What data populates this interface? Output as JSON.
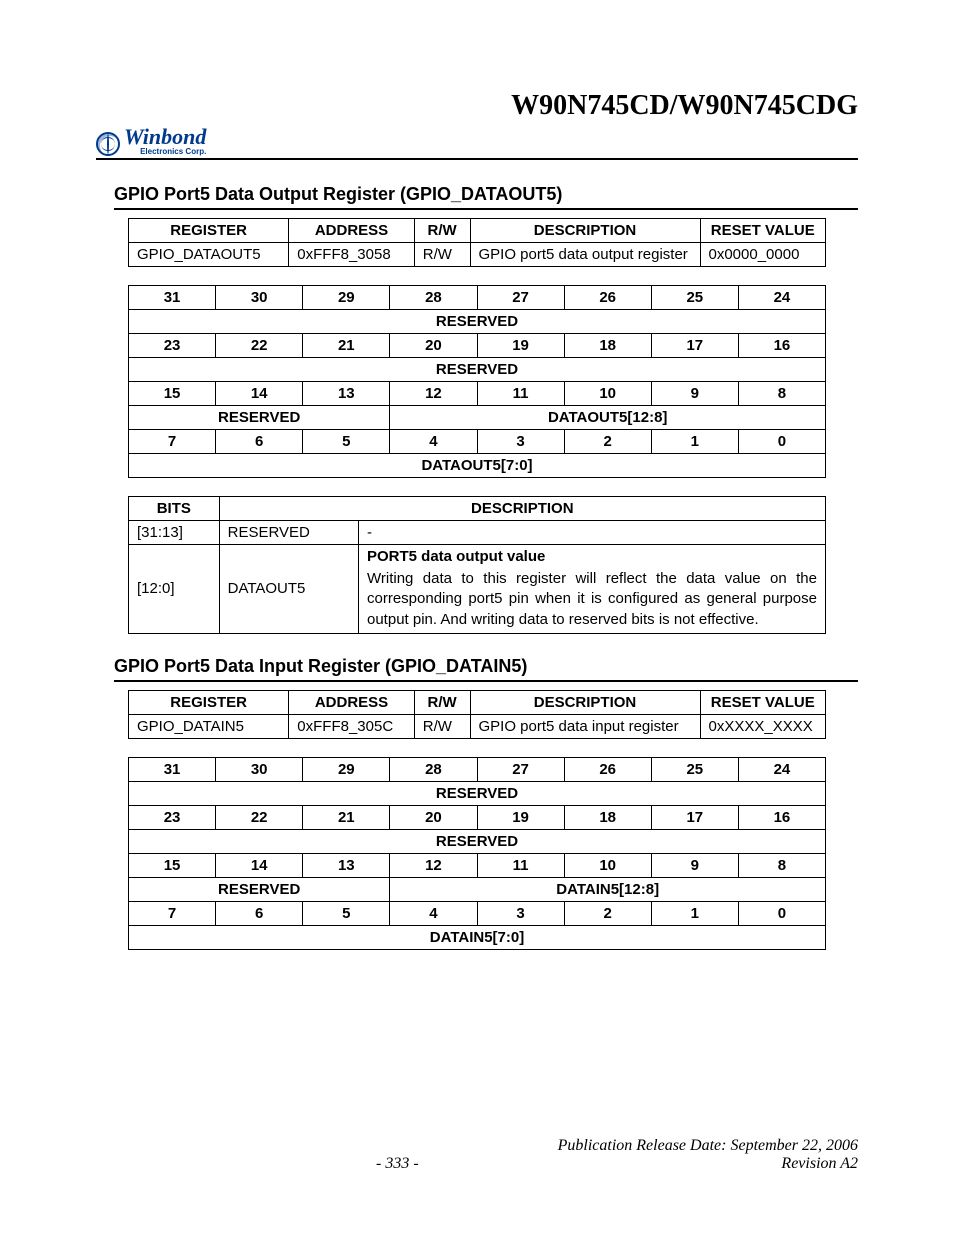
{
  "doc_title": "W90N745CD/W90N745CDG",
  "logo": {
    "brand": "Winbond",
    "sub": "Electronics Corp."
  },
  "section1": {
    "title": "GPIO Port5 Data Output Register (GPIO_DATAOUT5)",
    "header_cols": [
      "REGISTER",
      "ADDRESS",
      "R/W",
      "DESCRIPTION",
      "RESET VALUE"
    ],
    "row": [
      "GPIO_DATAOUT5",
      "0xFFF8_3058",
      "R/W",
      "GPIO port5 data output register",
      "0x0000_0000"
    ],
    "bits_rows": [
      [
        "31",
        "30",
        "29",
        "28",
        "27",
        "26",
        "25",
        "24"
      ],
      [
        {
          "span": 8,
          "text": "RESERVED"
        }
      ],
      [
        "23",
        "22",
        "21",
        "20",
        "19",
        "18",
        "17",
        "16"
      ],
      [
        {
          "span": 8,
          "text": "RESERVED"
        }
      ],
      [
        "15",
        "14",
        "13",
        "12",
        "11",
        "10",
        "9",
        "8"
      ],
      [
        {
          "span": 3,
          "text": "RESERVED"
        },
        {
          "span": 5,
          "text": "DATAOUT5[12:8]"
        }
      ],
      [
        "7",
        "6",
        "5",
        "4",
        "3",
        "2",
        "1",
        "0"
      ],
      [
        {
          "span": 8,
          "text": "DATAOUT5[7:0]"
        }
      ]
    ],
    "desc_cols": [
      "BITS",
      "DESCRIPTION"
    ],
    "desc_rows": [
      {
        "bits": "[31:13]",
        "name": "RESERVED",
        "title": "",
        "body": "-"
      },
      {
        "bits": "[12:0]",
        "name": "DATAOUT5",
        "title": "PORT5 data output value",
        "body": "Writing data to this register will reflect the data value on the corresponding port5 pin when it is configured as general purpose output pin. And writing data to reserved bits is not effective."
      }
    ]
  },
  "section2": {
    "title": "GPIO Port5 Data Input Register (GPIO_DATAIN5)",
    "header_cols": [
      "REGISTER",
      "ADDRESS",
      "R/W",
      "DESCRIPTION",
      "RESET VALUE"
    ],
    "row": [
      "GPIO_DATAIN5",
      "0xFFF8_305C",
      "R/W",
      "GPIO port5 data input register",
      "0xXXXX_XXXX"
    ],
    "bits_rows": [
      [
        "31",
        "30",
        "29",
        "28",
        "27",
        "26",
        "25",
        "24"
      ],
      [
        {
          "span": 8,
          "text": "RESERVED"
        }
      ],
      [
        "23",
        "22",
        "21",
        "20",
        "19",
        "18",
        "17",
        "16"
      ],
      [
        {
          "span": 8,
          "text": "RESERVED"
        }
      ],
      [
        "15",
        "14",
        "13",
        "12",
        "11",
        "10",
        "9",
        "8"
      ],
      [
        {
          "span": 3,
          "text": "RESERVED"
        },
        {
          "span": 5,
          "text": "DATAIN5[12:8]"
        }
      ],
      [
        "7",
        "6",
        "5",
        "4",
        "3",
        "2",
        "1",
        "0"
      ],
      [
        {
          "span": 8,
          "text": "DATAIN5[7:0]"
        }
      ]
    ]
  },
  "footer": {
    "pub_date": "Publication Release Date: September 22, 2006",
    "page": "- 333 -",
    "rev": "Revision A2"
  }
}
